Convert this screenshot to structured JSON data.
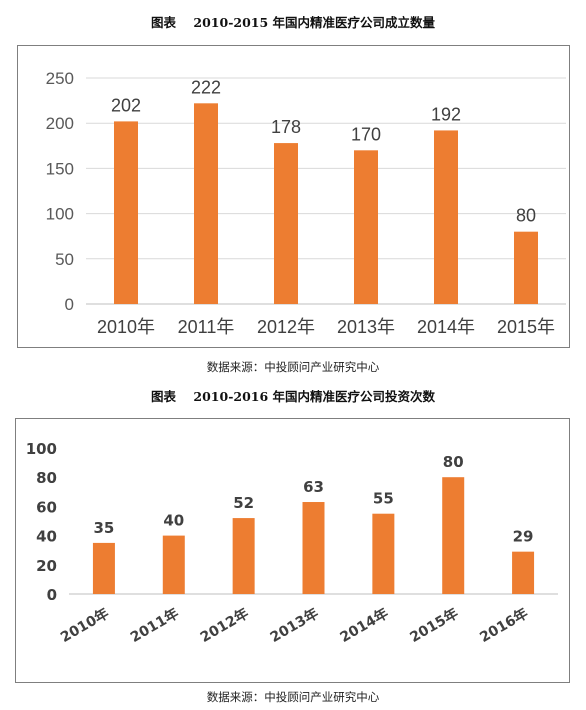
{
  "charts": [
    {
      "caption_prefix": "图表",
      "caption_title": "2010-2015 年国内精准医疗公司成立数量",
      "source": "数据来源：中投顾问产业研究中心"
    },
    {
      "caption_prefix": "图表",
      "caption_title": "2010-2016 年国内精准医疗公司投资次数",
      "source": "数据来源：中投顾问产业研究中心"
    }
  ],
  "colors": {
    "bar": "#ED7D31",
    "grid": "#D9D9D9",
    "axis": "#BFBFBF"
  },
  "chart_data": [
    {
      "type": "bar",
      "title": "2010-2015 年国内精准医疗公司成立数量",
      "categories": [
        "2010年",
        "2011年",
        "2012年",
        "2013年",
        "2014年",
        "2015年"
      ],
      "values": [
        202,
        222,
        178,
        170,
        192,
        80
      ],
      "ylim": [
        0,
        250
      ],
      "yticks": [
        0,
        50,
        100,
        150,
        200,
        250
      ],
      "grid": true,
      "xlabel": "",
      "ylabel": ""
    },
    {
      "type": "bar",
      "title": "2010-2016 年国内精准医疗公司投资次数",
      "categories": [
        "2010年",
        "2011年",
        "2012年",
        "2013年",
        "2014年",
        "2015年",
        "2016年"
      ],
      "values": [
        35,
        40,
        52,
        63,
        55,
        80,
        29
      ],
      "ylim": [
        0,
        100
      ],
      "yticks": [
        0,
        20,
        40,
        60,
        80,
        100
      ],
      "grid": false,
      "xlabel": "",
      "ylabel": ""
    }
  ]
}
